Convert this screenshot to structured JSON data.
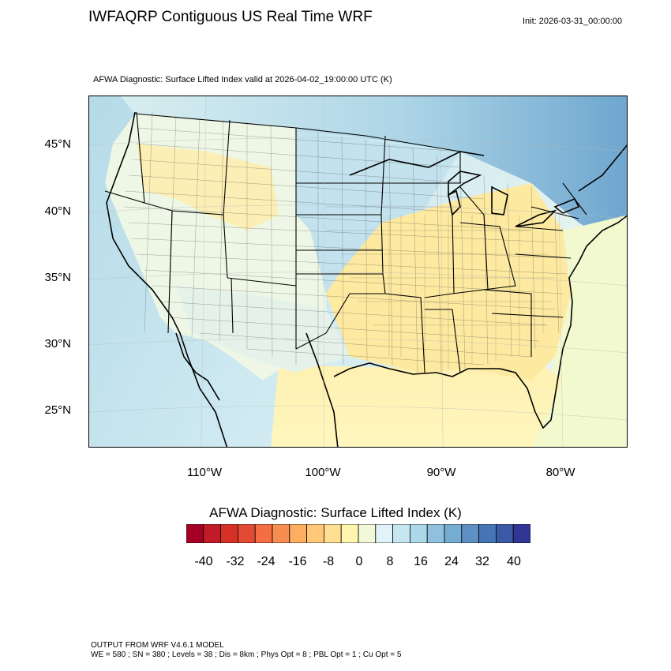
{
  "header": {
    "title": "IWFAQRP Contiguous US Real Time WRF",
    "init": "Init: 2026-03-31_00:00:00"
  },
  "plot": {
    "subtitle": "AFWA Diagnostic: Surface Lifted Index valid at 2026-04-02_19:00:00 UTC   (K)",
    "lat_labels": [
      "45°N",
      "40°N",
      "35°N",
      "30°N",
      "25°N"
    ],
    "lon_labels": [
      "110°W",
      "100°W",
      "90°W",
      "80°W"
    ]
  },
  "colorbar": {
    "title": "AFWA Diagnostic: Surface Lifted Index  (K)",
    "tick_labels": [
      "-40",
      "-32",
      "-24",
      "-16",
      "-8",
      "0",
      "8",
      "16",
      "24",
      "32",
      "40"
    ],
    "colors": [
      "#a50026",
      "#c21b27",
      "#d73027",
      "#e34a33",
      "#f46d43",
      "#f88d52",
      "#fdae61",
      "#fec877",
      "#fee090",
      "#fff5ae",
      "#f2f9d8",
      "#e0f3f8",
      "#c6e6f0",
      "#abd9e9",
      "#91c0dc",
      "#74add1",
      "#5f90c3",
      "#4575b4",
      "#3b5aa6",
      "#313695"
    ]
  },
  "footer": {
    "line1": "OUTPUT FROM WRF V4.6.1 MODEL",
    "line2": "WE = 580 ; SN = 380 ; Levels = 38 ; Dis = 8km ; Phys Opt = 8 ; PBL Opt = 1 ; Cu Opt = 5"
  }
}
